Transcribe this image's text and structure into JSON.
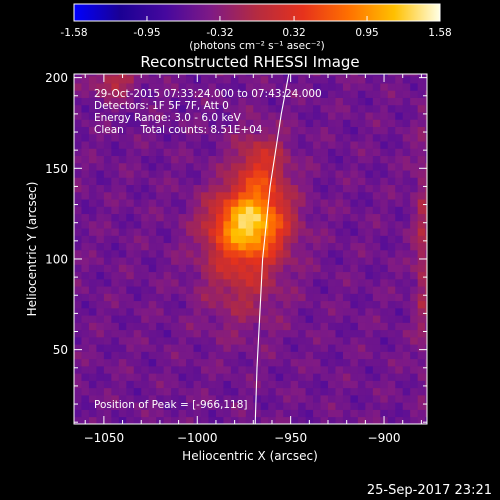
{
  "colorbar": {
    "tick_labels": [
      "-1.58",
      "-0.95",
      "-0.32",
      "0.32",
      "0.95",
      "1.58"
    ],
    "tick_values": [
      -1.58,
      -0.95,
      -0.32,
      0.32,
      0.95,
      1.58
    ],
    "units": "(photons cm⁻² s⁻¹ asec⁻²)",
    "range": [
      -1.58,
      1.58
    ],
    "colors": [
      "#0000ff",
      "#1a0094",
      "#46089e",
      "#7f1a85",
      "#b52b40",
      "#e6321c",
      "#ff7000",
      "#ffc000",
      "#ffffe6"
    ]
  },
  "chart_data": {
    "type": "heatmap",
    "title": "Reconstructed RHESSI Image",
    "xlabel": "Heliocentric X (arcsec)",
    "ylabel": "Heliocentric Y (arcsec)",
    "xlim": [
      -1066,
      -877
    ],
    "ylim": [
      9,
      202
    ],
    "x_ticks": [
      -1050,
      -1000,
      -950,
      -900
    ],
    "y_ticks": [
      50,
      100,
      150,
      200
    ],
    "x_tick_labels": [
      "−1050",
      "−1000",
      "−950",
      "−900"
    ],
    "y_tick_labels": [
      "50",
      "100",
      "150",
      "200"
    ],
    "info_lines": [
      "29-Oct-2015 07:33:24.000 to 07:43:24.000",
      "Detectors: 1F 5F 7F, Att 0",
      "Energy Range: 3.0 - 6.0 keV",
      "Clean     Total counts: 8.51E+04"
    ],
    "peak_label": "Position of Peak = [-966,118]",
    "peak": [
      -966,
      118
    ],
    "limb": [
      [
        -951,
        202
      ],
      [
        -955,
        180
      ],
      [
        -958,
        160
      ],
      [
        -961,
        140
      ],
      [
        -963,
        120
      ],
      [
        -965,
        100
      ],
      [
        -966,
        80
      ],
      [
        -967,
        60
      ],
      [
        -968,
        40
      ],
      [
        -969,
        9
      ]
    ],
    "sources": [
      {
        "x": -972,
        "y": 120,
        "sx": 14,
        "sy": 13,
        "amp": 1.55
      },
      {
        "x": -966,
        "y": 150,
        "sx": 10,
        "sy": 14,
        "amp": 0.75
      },
      {
        "x": -976,
        "y": 95,
        "sx": 15,
        "sy": 22,
        "amp": 0.55
      },
      {
        "x": -1045,
        "y": 198,
        "sx": 8,
        "sy": 6,
        "amp": 0.55
      },
      {
        "x": -878,
        "y": 105,
        "sx": 4,
        "sy": 40,
        "amp": 0.45
      }
    ],
    "background": -0.5,
    "grid": false
  },
  "footer": {
    "timestamp": "25-Sep-2017 23:21"
  }
}
